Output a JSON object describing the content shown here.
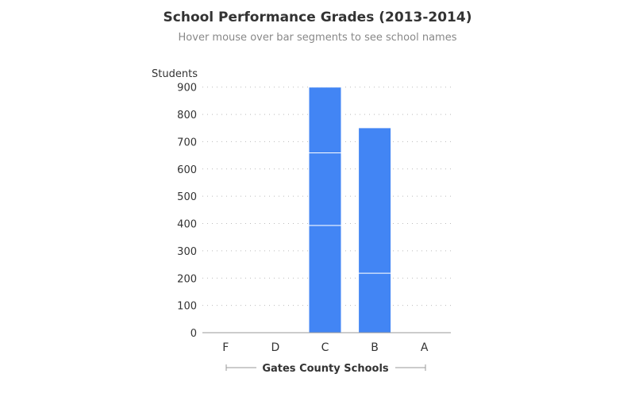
{
  "chart_data": {
    "type": "bar",
    "stacked": true,
    "title": "School Performance Grades (2013-2014)",
    "subtitle": "Hover mouse over bar segments to see school names",
    "ylabel": "Students",
    "xlabel": "Gates County Schools",
    "categories": [
      "F",
      "D",
      "C",
      "B",
      "A"
    ],
    "ylim": [
      0,
      900
    ],
    "yticks": [
      0,
      100,
      200,
      300,
      400,
      500,
      600,
      700,
      800,
      900
    ],
    "grid": true,
    "bar_color": "#4285f4",
    "segments": [
      [],
      [],
      [
        393,
        266,
        241
      ],
      [
        218,
        533
      ],
      []
    ]
  }
}
